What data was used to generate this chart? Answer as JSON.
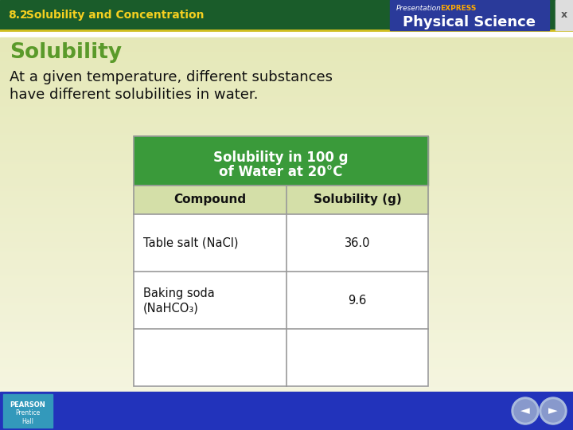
{
  "header_bg": "#1a5c2a",
  "header_text_left": "8.2 Solubility and Concentration",
  "header_text_color": "#f5d020",
  "header_text_bold": "8.2",
  "slide_bg": "#f0f0d0",
  "slide_bg_grad_top": "#f5f5e0",
  "slide_bg_grad_bottom": "#e8e8c0",
  "section_title": "Solubility",
  "section_title_color": "#5a9a2a",
  "body_text_line1": "At a given temperature, different substances",
  "body_text_line2": "have different solubilities in water.",
  "body_text_color": "#111111",
  "table_header_bg": "#3a9a3a",
  "table_header_text_line1": "Solubility in 100 g",
  "table_header_text_line2": "of Water at 20°C",
  "table_header_text_color": "#ffffff",
  "table_col_header_bg": "#d4dfa8",
  "table_col1_header": "Compound",
  "table_col2_header": "Solubility (g)",
  "table_col_header_text_color": "#111111",
  "table_row1_col1": "Table salt (NaCl)",
  "table_row1_col2": "36.0",
  "table_row2_col1_line1": "Baking soda",
  "table_row2_col1_line2": "(NaHCO₃)",
  "table_row2_col2": "9.6",
  "table_border_color": "#999999",
  "table_bg": "#ffffff",
  "top_right_bg": "#2a3a9a",
  "top_right_text_presentation": "Presentation",
  "top_right_text_express": "EXPRESS",
  "top_right_text_express_color": "#ffaa00",
  "top_right_text_science": "Physical Science",
  "top_right_text_color": "#ffffff",
  "x_button_bg": "#dddddd",
  "x_button_text": "x",
  "x_button_text_color": "#555555",
  "footer_bg": "#2233bb",
  "pearson_box_bg": "#3399bb",
  "pearson_text": "PEARSON",
  "prentice_text": "Prentice\nHall",
  "nav_circle_color": "#aabbdd",
  "nav_arrow_color": "#334488"
}
